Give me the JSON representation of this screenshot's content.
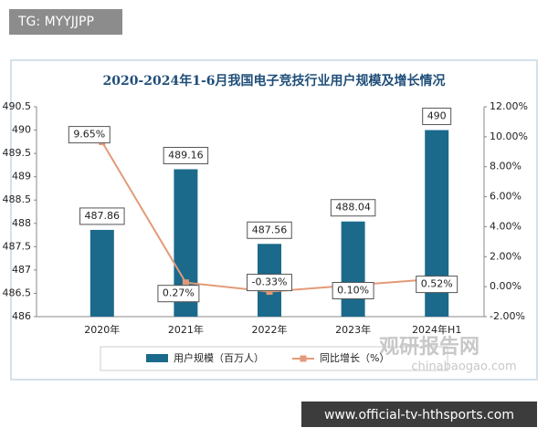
{
  "overlay": {
    "badge": "TG: MYYJJPP",
    "watermark": "观研报告网",
    "watermark_url": "chinabaogao.com",
    "banner": "www.official-tv-hthsports.com"
  },
  "chart_data": {
    "type": "bar-line",
    "title": "2020-2024年1-6月我国电子竞技行业用户规模及增长情况",
    "categories": [
      "2020年",
      "2021年",
      "2022年",
      "2023年",
      "2024年H1"
    ],
    "series": [
      {
        "name": "用户规模（百万人）",
        "type": "bar",
        "color": "#1b6a8c",
        "values": [
          487.86,
          489.16,
          487.56,
          488.04,
          490
        ]
      },
      {
        "name": "同比增长（%）",
        "type": "line",
        "axis": "y2",
        "color": "#e39a78",
        "values": [
          9.65,
          0.27,
          -0.33,
          0.1,
          0.52
        ],
        "value_labels": [
          "9.65%",
          "0.27%",
          "-0.33%",
          "0.10%",
          "0.52%"
        ]
      }
    ],
    "ylim": [
      486,
      490.5
    ],
    "yticks": [
      486,
      486.5,
      487,
      487.5,
      488,
      488.5,
      489,
      489.5,
      490,
      490.5
    ],
    "y2lim": [
      -2,
      12
    ],
    "y2ticks": [
      {
        "value": -2,
        "label": "-2.00%"
      },
      {
        "value": 0,
        "label": "0.00%"
      },
      {
        "value": 2,
        "label": "2.00%"
      },
      {
        "value": 4,
        "label": "4.00%"
      },
      {
        "value": 6,
        "label": "6.00%"
      },
      {
        "value": 8,
        "label": "8.00%"
      },
      {
        "value": 10,
        "label": "10.00%"
      },
      {
        "value": 12,
        "label": "12.00%"
      }
    ],
    "grid": false,
    "legend": "bottom"
  }
}
